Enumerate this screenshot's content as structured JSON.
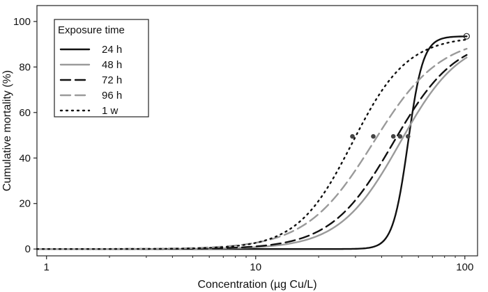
{
  "chart_data": {
    "type": "line",
    "title": "",
    "xlabel": "Concentration (µg Cu/L)",
    "ylabel": "Cumulative mortality (%)",
    "xscale": "log",
    "xlim": [
      0.9,
      115
    ],
    "ylim": [
      -3,
      107
    ],
    "xticks": [
      1,
      10,
      100
    ],
    "xtick_labels": [
      "1",
      "10",
      "100"
    ],
    "yticks": [
      0,
      20,
      40,
      60,
      80,
      100
    ],
    "ytick_labels": [
      "0",
      "20",
      "40",
      "60",
      "80",
      "100"
    ],
    "legend": {
      "title": "Exposure time",
      "position": "top-left",
      "entries": [
        "24 h",
        "48 h",
        "72 h",
        "96 h",
        "1 w"
      ]
    },
    "max_mortality": 93.5,
    "endpoint": {
      "x": 102,
      "y": 93.5
    },
    "series": [
      {
        "name": "24 h",
        "lc50": 53.5,
        "slope": 12,
        "color": "#111111",
        "dash": "solid",
        "lc50_point": {
          "x": 53.5,
          "y": 49.5
        }
      },
      {
        "name": "48 h",
        "lc50": 49.0,
        "slope": 3.0,
        "color": "#9a9a9a",
        "dash": "solid",
        "lc50_point": {
          "x": 49.0,
          "y": 49.5
        }
      },
      {
        "name": "72 h",
        "lc50": 45.5,
        "slope": 2.9,
        "color": "#111111",
        "dash": "long-dash",
        "lc50_point": {
          "x": 45.5,
          "y": 49.5
        }
      },
      {
        "name": "96 h",
        "lc50": 36.5,
        "slope": 2.7,
        "color": "#9a9a9a",
        "dash": "long-dash",
        "lc50_point": {
          "x": 36.5,
          "y": 49.5
        }
      },
      {
        "name": "1 w",
        "lc50": 29.0,
        "slope": 3.3,
        "color": "#111111",
        "dash": "dotted",
        "lc50_point": {
          "x": 29.0,
          "y": 49.5
        }
      }
    ]
  }
}
